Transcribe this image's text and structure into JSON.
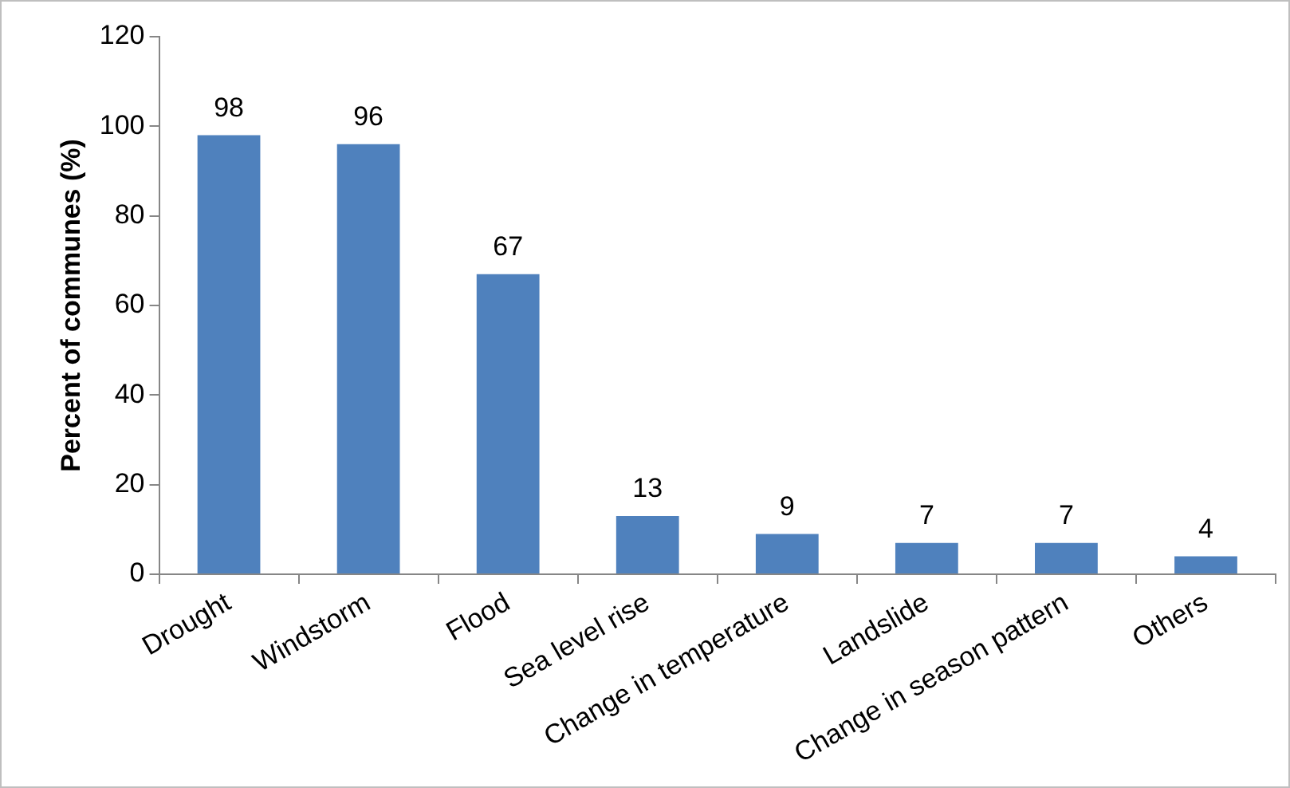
{
  "chart_data": {
    "type": "bar",
    "ylabel": "Percent of communes (%)",
    "categories": [
      "Drought",
      "Windstorm",
      "Flood",
      "Sea level rise",
      "Change in temperature",
      "Landslide",
      "Change in season pattern",
      "Others"
    ],
    "values": [
      98,
      96,
      67,
      13,
      9,
      7,
      7,
      4
    ],
    "color": "#4f81bd",
    "ylim": [
      0,
      120
    ],
    "yticks": [
      0,
      20,
      40,
      60,
      80,
      100,
      120
    ],
    "grid": false,
    "data_labels": true
  }
}
